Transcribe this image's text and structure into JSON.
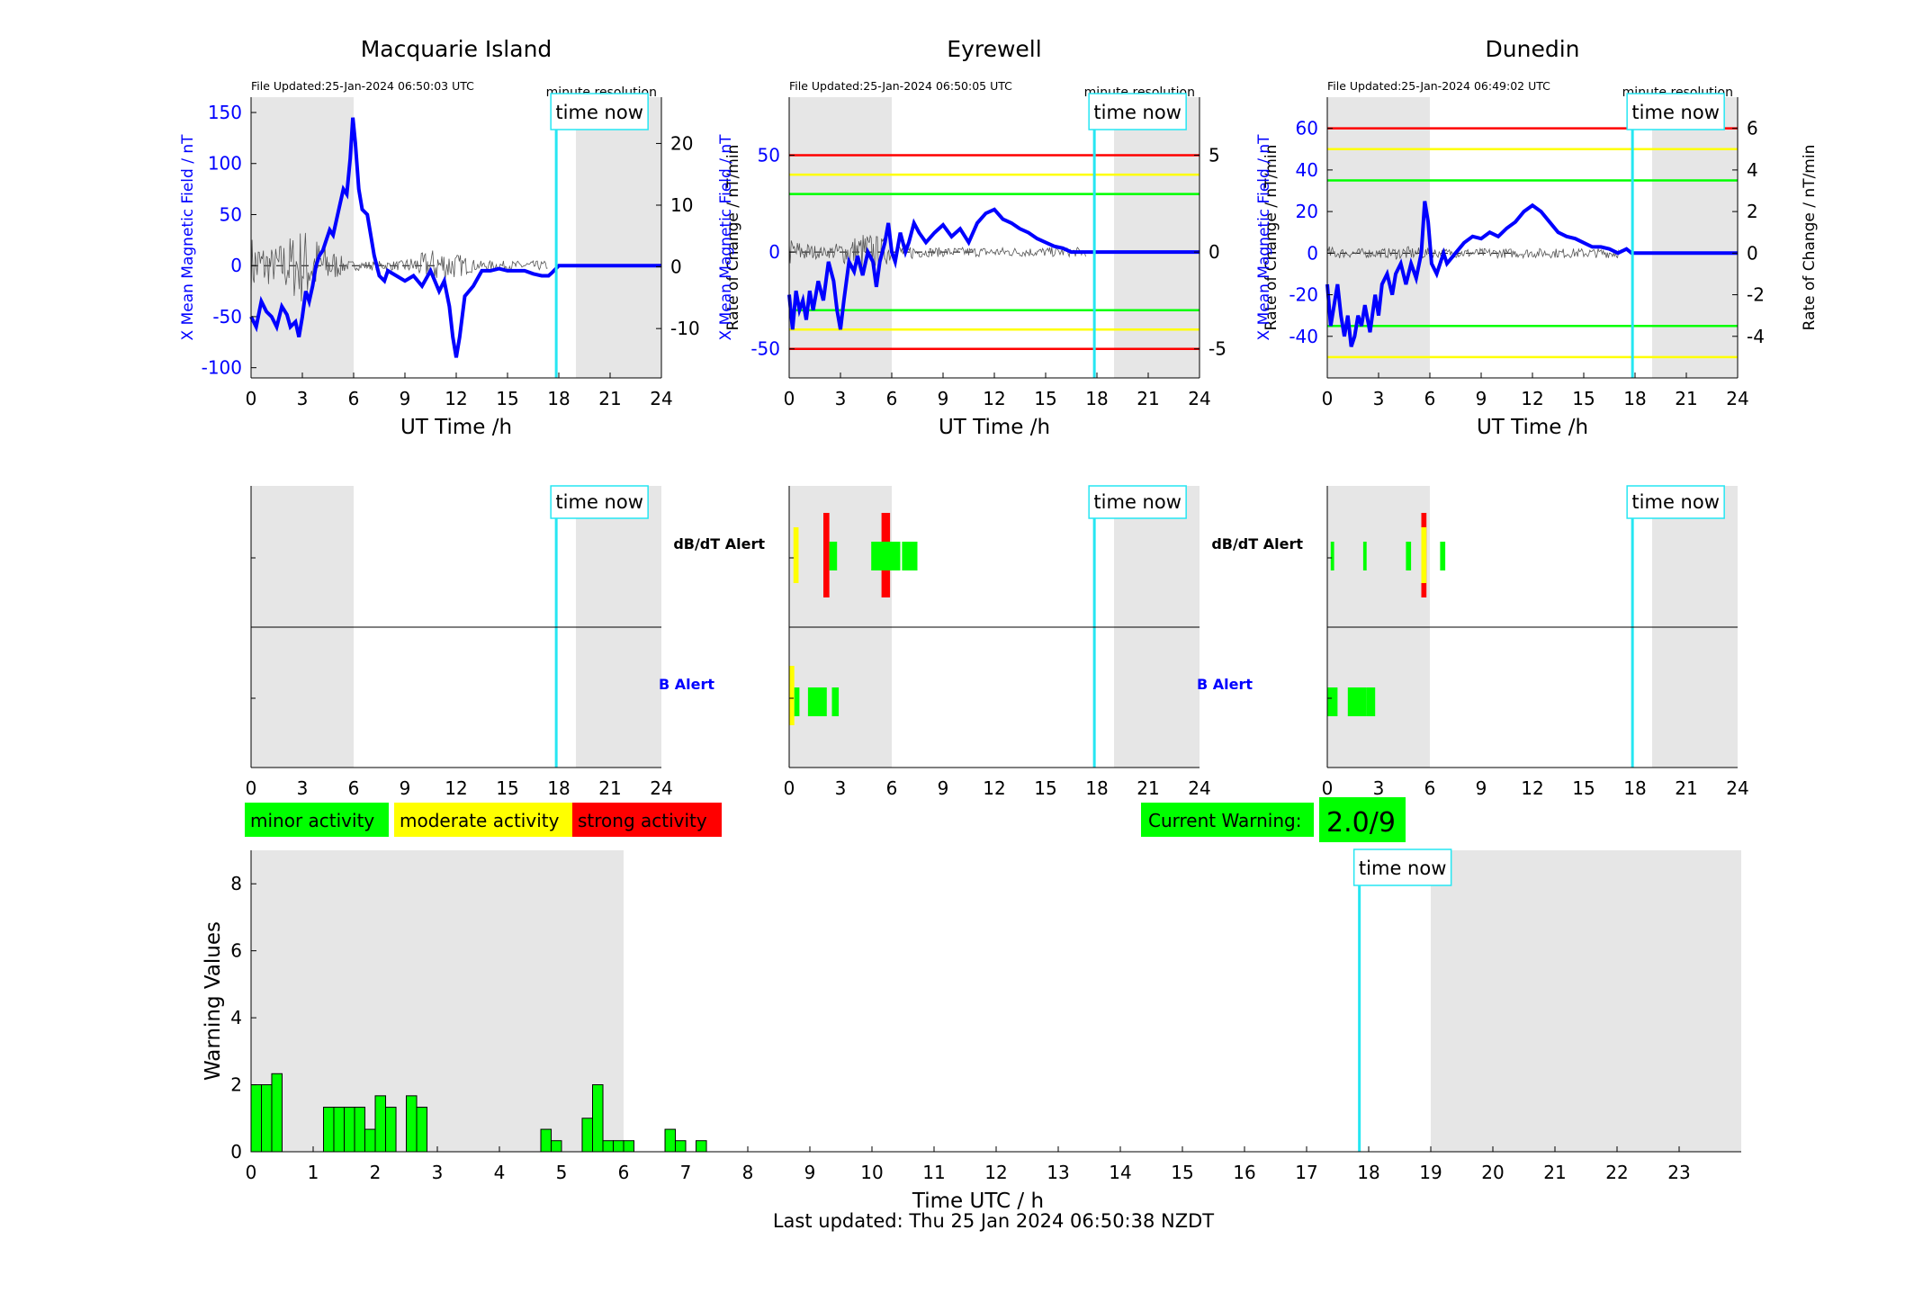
{
  "colors": {
    "shade": "#e6e6e6",
    "cyan": "#26e6f2",
    "blue": "#0000ff",
    "green": "#00ff00",
    "yellow": "#ffff00",
    "red": "#ff0000"
  },
  "time_now_label": "time now",
  "resolution_label": "minute resolution",
  "stations": [
    {
      "name": "Macquarie Island",
      "updated": "File Updated:25-Jan-2024 06:50:03 UTC",
      "ylim": [
        -110,
        165
      ],
      "yticks": [
        -100,
        -50,
        0,
        50,
        100,
        150
      ],
      "rlim": [
        -18,
        27.5
      ],
      "rticks": [
        -10,
        0,
        10,
        20
      ],
      "thresholds": [],
      "series": [
        [
          0,
          -50
        ],
        [
          0.3,
          -60
        ],
        [
          0.6,
          -35
        ],
        [
          0.9,
          -45
        ],
        [
          1.2,
          -50
        ],
        [
          1.5,
          -60
        ],
        [
          1.8,
          -40
        ],
        [
          2.1,
          -48
        ],
        [
          2.3,
          -60
        ],
        [
          2.6,
          -55
        ],
        [
          2.8,
          -70
        ],
        [
          3.0,
          -50
        ],
        [
          3.2,
          -25
        ],
        [
          3.4,
          -35
        ],
        [
          3.6,
          -20
        ],
        [
          3.8,
          0
        ],
        [
          4.0,
          10
        ],
        [
          4.2,
          15
        ],
        [
          4.4,
          25
        ],
        [
          4.6,
          35
        ],
        [
          4.8,
          30
        ],
        [
          5.0,
          45
        ],
        [
          5.2,
          60
        ],
        [
          5.4,
          75
        ],
        [
          5.6,
          70
        ],
        [
          5.8,
          105
        ],
        [
          5.95,
          145
        ],
        [
          6.1,
          120
        ],
        [
          6.3,
          75
        ],
        [
          6.5,
          55
        ],
        [
          6.8,
          50
        ],
        [
          7.0,
          30
        ],
        [
          7.2,
          10
        ],
        [
          7.5,
          -10
        ],
        [
          7.8,
          -15
        ],
        [
          8.0,
          -5
        ],
        [
          8.5,
          -10
        ],
        [
          9.0,
          -15
        ],
        [
          9.5,
          -10
        ],
        [
          10.0,
          -20
        ],
        [
          10.5,
          -5
        ],
        [
          11.0,
          -25
        ],
        [
          11.3,
          -15
        ],
        [
          11.6,
          -40
        ],
        [
          11.8,
          -70
        ],
        [
          12.0,
          -90
        ],
        [
          12.2,
          -70
        ],
        [
          12.5,
          -30
        ],
        [
          13.0,
          -20
        ],
        [
          13.5,
          -5
        ],
        [
          14.0,
          -5
        ],
        [
          14.5,
          -3
        ],
        [
          15.0,
          -5
        ],
        [
          15.5,
          -5
        ],
        [
          16.0,
          -5
        ],
        [
          16.5,
          -8
        ],
        [
          17.0,
          -10
        ],
        [
          17.4,
          -10
        ],
        [
          17.6,
          -7
        ],
        [
          18,
          0
        ],
        [
          24,
          0
        ]
      ],
      "noise_ranges": [
        [
          0,
          13
        ],
        [
          11,
          8
        ],
        [
          3,
          17
        ]
      ],
      "db_alerts": [],
      "b_alerts": []
    },
    {
      "name": "Eyrewell",
      "updated": "File Updated:25-Jan-2024 06:50:05 UTC",
      "ylim": [
        -65,
        80
      ],
      "yticks": [
        -50,
        0,
        50
      ],
      "rlim": [
        -6.5,
        8
      ],
      "rticks": [
        -5,
        0,
        5
      ],
      "thresholds": [
        [
          50,
          "red"
        ],
        [
          40,
          "yellow"
        ],
        [
          30,
          "green"
        ],
        [
          -30,
          "green"
        ],
        [
          -40,
          "yellow"
        ],
        [
          -50,
          "red"
        ]
      ],
      "series": [
        [
          0,
          -22
        ],
        [
          0.2,
          -40
        ],
        [
          0.4,
          -20
        ],
        [
          0.6,
          -30
        ],
        [
          0.8,
          -25
        ],
        [
          1.0,
          -35
        ],
        [
          1.2,
          -20
        ],
        [
          1.4,
          -30
        ],
        [
          1.7,
          -15
        ],
        [
          2.0,
          -25
        ],
        [
          2.3,
          -5
        ],
        [
          2.6,
          -15
        ],
        [
          2.8,
          -30
        ],
        [
          3.0,
          -40
        ],
        [
          3.2,
          -25
        ],
        [
          3.5,
          -5
        ],
        [
          3.8,
          -10
        ],
        [
          4.0,
          -2
        ],
        [
          4.3,
          -12
        ],
        [
          4.6,
          0
        ],
        [
          4.9,
          -5
        ],
        [
          5.1,
          -18
        ],
        [
          5.3,
          -5
        ],
        [
          5.6,
          5
        ],
        [
          5.8,
          15
        ],
        [
          6.0,
          0
        ],
        [
          6.2,
          -5
        ],
        [
          6.5,
          10
        ],
        [
          6.8,
          0
        ],
        [
          7.0,
          5
        ],
        [
          7.3,
          15
        ],
        [
          7.6,
          10
        ],
        [
          8.0,
          5
        ],
        [
          8.5,
          10
        ],
        [
          9.0,
          14
        ],
        [
          9.5,
          8
        ],
        [
          10.0,
          12
        ],
        [
          10.5,
          5
        ],
        [
          11.0,
          15
        ],
        [
          11.5,
          20
        ],
        [
          12.0,
          22
        ],
        [
          12.5,
          17
        ],
        [
          13.0,
          15
        ],
        [
          13.5,
          12
        ],
        [
          14.0,
          10
        ],
        [
          14.5,
          7
        ],
        [
          15.0,
          5
        ],
        [
          15.5,
          3
        ],
        [
          16.0,
          2
        ],
        [
          16.5,
          0
        ],
        [
          17.0,
          0
        ],
        [
          24,
          0
        ]
      ],
      "noise_ranges": [
        [
          0,
          6
        ],
        [
          4.5,
          9
        ],
        [
          6.5,
          4
        ],
        [
          7,
          2
        ]
      ],
      "db_alerts": [
        [
          0.25,
          0.55,
          "yellow"
        ],
        [
          2.0,
          2.35,
          "red"
        ],
        [
          5.4,
          5.9,
          "red"
        ],
        [
          2.35,
          2.8,
          "green"
        ],
        [
          4.8,
          6.5,
          "green"
        ],
        [
          6.6,
          7.5,
          "green"
        ]
      ],
      "b_alerts": [
        [
          0,
          0.3,
          "yellow"
        ],
        [
          1.1,
          2.2,
          "green"
        ],
        [
          2.5,
          2.9,
          "green"
        ],
        [
          0.3,
          0.6,
          "green"
        ]
      ]
    },
    {
      "name": "Dunedin",
      "updated": "File Updated:25-Jan-2024 06:49:02 UTC",
      "ylim": [
        -60,
        75
      ],
      "yticks": [
        -40,
        -20,
        0,
        20,
        40,
        60
      ],
      "rlim": [
        -6,
        7.5
      ],
      "rticks": [
        -4,
        -2,
        0,
        2,
        4,
        6
      ],
      "thresholds": [
        [
          60,
          "red"
        ],
        [
          50,
          "yellow"
        ],
        [
          35,
          "green"
        ],
        [
          -35,
          "green"
        ],
        [
          -50,
          "yellow"
        ]
      ],
      "series": [
        [
          0,
          -15
        ],
        [
          0.2,
          -35
        ],
        [
          0.4,
          -25
        ],
        [
          0.6,
          -15
        ],
        [
          0.8,
          -30
        ],
        [
          1.0,
          -40
        ],
        [
          1.2,
          -30
        ],
        [
          1.4,
          -45
        ],
        [
          1.6,
          -40
        ],
        [
          1.8,
          -30
        ],
        [
          2.0,
          -35
        ],
        [
          2.2,
          -25
        ],
        [
          2.5,
          -38
        ],
        [
          2.8,
          -20
        ],
        [
          3.0,
          -30
        ],
        [
          3.2,
          -15
        ],
        [
          3.5,
          -10
        ],
        [
          3.8,
          -20
        ],
        [
          4.0,
          -10
        ],
        [
          4.3,
          -5
        ],
        [
          4.6,
          -15
        ],
        [
          4.9,
          -5
        ],
        [
          5.2,
          -12
        ],
        [
          5.5,
          0
        ],
        [
          5.7,
          25
        ],
        [
          5.9,
          15
        ],
        [
          6.1,
          -5
        ],
        [
          6.4,
          -10
        ],
        [
          6.8,
          0
        ],
        [
          7.0,
          -5
        ],
        [
          7.5,
          0
        ],
        [
          8.0,
          5
        ],
        [
          8.5,
          8
        ],
        [
          9.0,
          7
        ],
        [
          9.5,
          10
        ],
        [
          10.0,
          8
        ],
        [
          10.5,
          12
        ],
        [
          11.0,
          15
        ],
        [
          11.5,
          20
        ],
        [
          12.0,
          23
        ],
        [
          12.5,
          20
        ],
        [
          13.0,
          15
        ],
        [
          13.5,
          10
        ],
        [
          14.0,
          8
        ],
        [
          14.5,
          7
        ],
        [
          15.0,
          5
        ],
        [
          15.5,
          3
        ],
        [
          16.0,
          3
        ],
        [
          16.5,
          2
        ],
        [
          17.0,
          0
        ],
        [
          17.5,
          2
        ],
        [
          17.8,
          0
        ],
        [
          24,
          0
        ]
      ],
      "noise_ranges": [
        [
          0,
          3
        ],
        [
          1.5,
          2
        ],
        [
          4.5,
          3
        ],
        [
          5.5,
          2.5
        ]
      ],
      "db_alerts": [
        [
          0.2,
          0.4,
          "green"
        ],
        [
          2.1,
          2.3,
          "green"
        ],
        [
          4.6,
          4.9,
          "green"
        ],
        [
          5.5,
          5.8,
          "red"
        ],
        [
          5.5,
          5.8,
          "yellow"
        ],
        [
          6.6,
          6.9,
          "green"
        ]
      ],
      "b_alerts": [
        [
          0,
          0.6,
          "green"
        ],
        [
          1.2,
          2.3,
          "green"
        ],
        [
          2.3,
          2.8,
          "green"
        ]
      ]
    }
  ],
  "top_xlabel": "UT Time /h",
  "left_ylabel": "X Mean Magnetic Field / nT",
  "right_ylabel": "Rate of Change / nT/min",
  "db_alert_label": "dB/dT Alert",
  "b_alert_label": "B Alert",
  "xticks_hours": [
    0,
    3,
    6,
    9,
    12,
    15,
    18,
    21,
    24
  ],
  "time_now_hour": 17.85,
  "night_shade": [
    [
      0,
      6
    ],
    [
      19,
      24
    ]
  ],
  "legend": [
    {
      "label": "minor activity",
      "color": "#00ff00"
    },
    {
      "label": "moderate activity",
      "color": "#ffff00"
    },
    {
      "label": "strong activity",
      "color": "#ff0000"
    }
  ],
  "current_warning_label": "Current Warning:",
  "current_warning_value": "2.0/9",
  "chart_data": {
    "type": "bar",
    "xlabel": "Time UTC / h",
    "ylabel": "Warning Values",
    "ylim": [
      0,
      9
    ],
    "yticks": [
      0,
      2,
      4,
      6,
      8
    ],
    "xlim": [
      0,
      24
    ],
    "xticks": [
      0,
      1,
      2,
      3,
      4,
      5,
      6,
      7,
      8,
      9,
      10,
      11,
      12,
      13,
      14,
      15,
      16,
      17,
      18,
      19,
      20,
      21,
      22,
      23
    ],
    "bar_width_h": 0.167,
    "bars": [
      [
        0.0,
        2.0
      ],
      [
        0.167,
        2.0
      ],
      [
        0.333,
        2.33
      ],
      [
        1.167,
        1.33
      ],
      [
        1.333,
        1.33
      ],
      [
        1.5,
        1.33
      ],
      [
        1.667,
        1.33
      ],
      [
        1.833,
        0.67
      ],
      [
        2.0,
        1.67
      ],
      [
        2.167,
        1.33
      ],
      [
        2.5,
        1.67
      ],
      [
        2.667,
        1.33
      ],
      [
        4.667,
        0.67
      ],
      [
        4.833,
        0.33
      ],
      [
        5.333,
        1.0
      ],
      [
        5.5,
        2.0
      ],
      [
        5.667,
        0.33
      ],
      [
        5.833,
        0.33
      ],
      [
        6.0,
        0.33
      ],
      [
        6.667,
        0.67
      ],
      [
        6.833,
        0.33
      ],
      [
        7.167,
        0.33
      ]
    ]
  },
  "footer": "Last updated: Thu 25 Jan 2024 06:50:38 NZDT"
}
